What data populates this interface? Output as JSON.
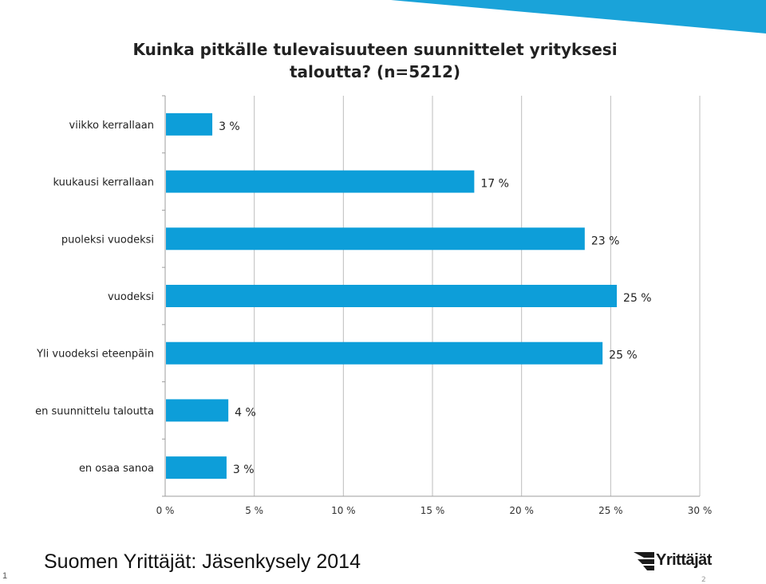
{
  "chart_data": {
    "type": "bar",
    "orientation": "horizontal",
    "title": "Kuinka pitkälle tulevaisuuteen suunnittelet yrityksesi taloutta? (n=5212)",
    "categories": [
      "viikko kerrallaan",
      "kuukausi kerrallaan",
      "puoleksi vuodeksi",
      "vuodeksi",
      "Yli vuodeksi eteenpäin",
      "en suunnittelu taloutta",
      "en osaa sanoa"
    ],
    "values": [
      2.6,
      17.3,
      23.5,
      25.3,
      24.5,
      3.5,
      3.4
    ],
    "value_labels": [
      "3 %",
      "17 %",
      "23 %",
      "25 %",
      "25 %",
      "4 %",
      "3 %"
    ],
    "xlim": [
      0,
      30
    ],
    "x_ticks": [
      "0 %",
      "5 %",
      "10 %",
      "15 %",
      "20 %",
      "25 %",
      "30 %"
    ],
    "grid": true,
    "bar_color": "#0d9ed9"
  },
  "footer": {
    "text": "Suomen Yrittäjät: Jäsenkysely 2014",
    "slide_number": "1",
    "slide_number_right": "2"
  },
  "logo": {
    "text": "Yrittäjät"
  },
  "colors": {
    "accent": "#0d9ed9"
  }
}
